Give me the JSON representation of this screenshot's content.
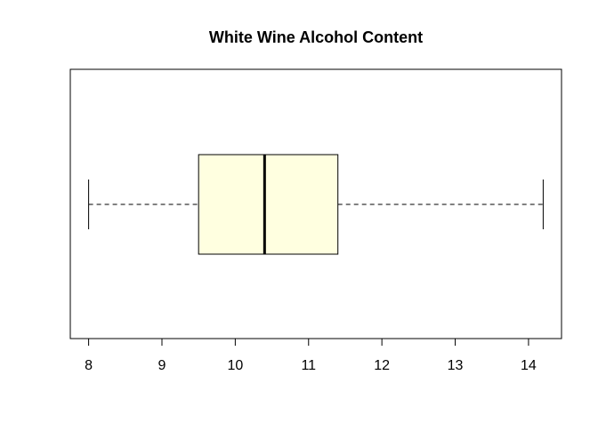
{
  "chart_data": {
    "type": "boxplot",
    "title": "White Wine Alcohol Content",
    "xlabel": "",
    "ylabel": "",
    "orientation": "horizontal",
    "xlim": [
      7.75,
      14.45
    ],
    "x_ticks": [
      8,
      9,
      10,
      11,
      12,
      13,
      14
    ],
    "x_tick_labels": [
      "8",
      "9",
      "10",
      "11",
      "12",
      "13",
      "14"
    ],
    "grid": false,
    "legend": "none",
    "box": {
      "whisker_low": 8.0,
      "q1": 9.5,
      "median": 10.4,
      "q3": 11.4,
      "whisker_high": 14.2
    },
    "colors": {
      "box_fill": "#FFFFE0",
      "stroke": "#000000",
      "background": "#FFFFFF"
    }
  }
}
